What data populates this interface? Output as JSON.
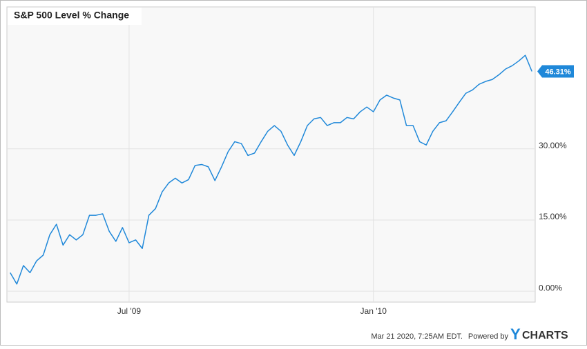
{
  "chart_data": {
    "type": "line",
    "title": "S&P 500 Level % Change",
    "categories": [
      null,
      null,
      null,
      null,
      null,
      null,
      null,
      null,
      null,
      null,
      null,
      null,
      null,
      null,
      null,
      null,
      null,
      null,
      "Jul '09",
      null,
      null,
      null,
      null,
      null,
      null,
      null,
      null,
      null,
      null,
      null,
      null,
      null,
      null,
      null,
      null,
      null,
      null,
      null,
      null,
      null,
      null,
      null,
      null,
      null,
      null,
      null,
      null,
      null,
      null,
      null,
      null,
      null,
      null,
      null,
      null,
      "Jan '10",
      null,
      null,
      null,
      null,
      null,
      null,
      null,
      null,
      null,
      null,
      null,
      null,
      null,
      null,
      null,
      null,
      null,
      null,
      null,
      null,
      null,
      null,
      null,
      null
    ],
    "series": [
      {
        "name": "S&P 500 Level % Change",
        "color": "#1f88d9",
        "values": [
          3.9,
          1.5,
          5.4,
          3.9,
          6.4,
          7.6,
          11.9,
          14.1,
          9.7,
          11.9,
          10.8,
          11.9,
          16,
          16,
          16.3,
          12.6,
          10.5,
          13.4,
          10.2,
          10.8,
          9,
          16,
          17.4,
          20.9,
          22.8,
          23.8,
          22.8,
          23.5,
          26.5,
          26.7,
          26.2,
          23.3,
          26.2,
          29.4,
          31.5,
          31.1,
          28.6,
          29.1,
          31.5,
          33.7,
          34.9,
          33.7,
          30.8,
          28.6,
          31.5,
          34.9,
          36.3,
          36.6,
          34.9,
          35.5,
          35.5,
          36.6,
          36.3,
          37.8,
          38.8,
          37.8,
          40.3,
          41.3,
          40.7,
          40.3,
          34.9,
          34.9,
          31.5,
          30.8,
          33.7,
          35.5,
          35.9,
          37.8,
          39.8,
          41.7,
          42.4,
          43.6,
          44.2,
          44.6,
          45.6,
          46.8,
          47.5,
          48.5,
          49.7,
          46.31
        ],
        "value_labels": [
          null,
          null,
          null,
          null,
          null,
          null,
          null,
          null,
          null,
          null,
          null,
          null,
          null,
          null,
          null,
          null,
          null,
          null,
          null,
          null,
          null,
          null,
          null,
          null,
          null,
          null,
          null,
          null,
          null,
          null,
          null,
          null,
          null,
          null,
          null,
          null,
          null,
          null,
          null,
          null,
          null,
          null,
          null,
          null,
          null,
          null,
          null,
          null,
          null,
          null,
          null,
          null,
          null,
          null,
          null,
          null,
          null,
          null,
          null,
          null,
          null,
          null,
          null,
          null,
          null,
          null,
          null,
          null,
          null,
          null,
          null,
          null,
          null,
          null,
          null,
          null,
          null,
          null,
          null,
          "46.31%"
        ]
      }
    ],
    "ylim": [
      -2.3,
      59.9
    ],
    "yticks": [
      {
        "value": 0,
        "label": "0.00%"
      },
      {
        "value": 15,
        "label": "15.00%"
      },
      {
        "value": 30,
        "label": "30.00%"
      }
    ],
    "grid": true
  },
  "footer": {
    "timestamp": "Mar 21 2020, 7:25AM EDT.",
    "powered": "Powered by",
    "brand_y": "Y",
    "brand": "CHARTS"
  }
}
